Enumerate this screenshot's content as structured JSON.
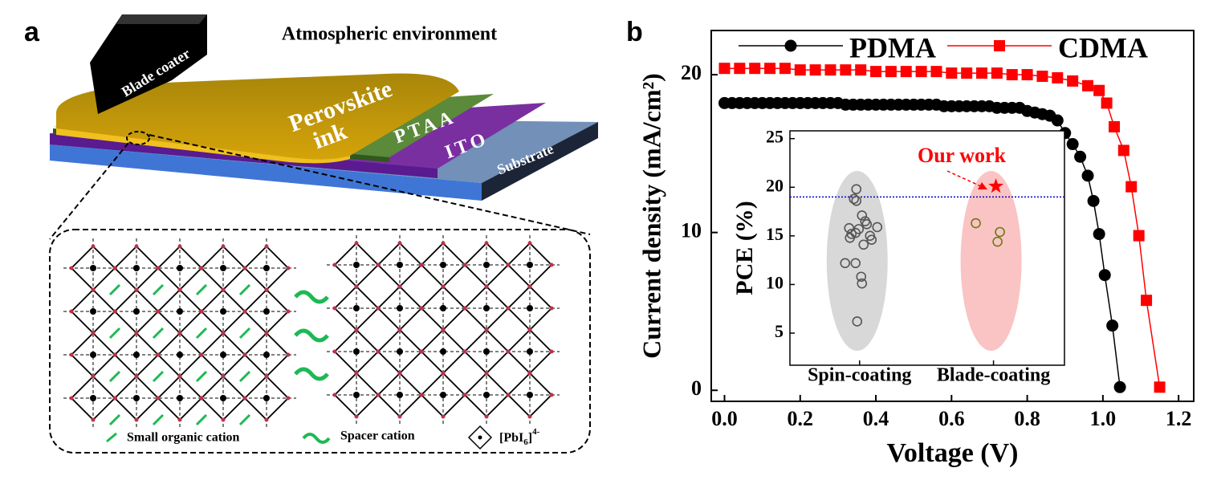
{
  "panel_a": {
    "label": "a",
    "title": "Atmospheric environment",
    "blade": "Blade coater",
    "ink": [
      "Perovskite",
      "ink"
    ],
    "layers": [
      "PTAA",
      "ITO",
      "Substrate"
    ],
    "legend": {
      "small": "Small organic cation",
      "spacer": "Spacer cation",
      "octa": {
        "open": "[PbI",
        "sub": "6",
        "close": "]",
        "sup": "4-"
      }
    }
  },
  "panel_b_label": "b",
  "chart_data": [
    {
      "type": "line",
      "xlabel": "Voltage (V)",
      "ylabel": "Current density (mA/cm²)",
      "xlim": [
        -0.035,
        1.24
      ],
      "ylim": [
        -0.7,
        22.8
      ],
      "xticks": [
        {
          "value": 0,
          "label": "0.0"
        },
        0.2,
        0.4,
        0.6,
        0.8,
        {
          "value": 1,
          "label": "1.0"
        },
        1.2
      ],
      "yticks": [
        0,
        10,
        20
      ],
      "series": [
        {
          "name": "PDMA",
          "color": "#000000",
          "marker": "circle",
          "x": [
            0,
            0.02,
            0.04,
            0.06,
            0.08,
            0.1,
            0.12,
            0.14,
            0.16,
            0.18,
            0.2,
            0.22,
            0.24,
            0.26,
            0.28,
            0.3,
            0.32,
            0.34,
            0.36,
            0.38,
            0.4,
            0.42,
            0.44,
            0.46,
            0.48,
            0.5,
            0.52,
            0.54,
            0.56,
            0.58,
            0.6,
            0.62,
            0.64,
            0.66,
            0.68,
            0.7,
            0.72,
            0.74,
            0.76,
            0.78,
            0.8,
            0.82,
            0.84,
            0.86,
            0.88,
            0.9,
            0.92,
            0.94,
            0.96,
            0.975,
            0.99,
            1.005,
            1.025,
            1.045
          ],
          "values": [
            18.2,
            18.2,
            18.2,
            18.2,
            18.2,
            18.2,
            18.2,
            18.2,
            18.2,
            18.2,
            18.2,
            18.2,
            18.2,
            18.2,
            18.2,
            18.2,
            18.1,
            18.1,
            18.1,
            18.1,
            18.1,
            18.1,
            18.1,
            18.1,
            18.1,
            18.1,
            18.1,
            18.1,
            18.1,
            18,
            18,
            18,
            18,
            18,
            18,
            18,
            17.9,
            17.9,
            17.9,
            17.9,
            17.7,
            17.6,
            17.5,
            17.4,
            17.1,
            16.3,
            15.6,
            14.8,
            13.6,
            12,
            9.9,
            7.3,
            4.1,
            0.2
          ]
        },
        {
          "name": "CDMA",
          "color": "#ff0000",
          "marker": "square",
          "x": [
            0,
            0.04,
            0.08,
            0.12,
            0.16,
            0.2,
            0.24,
            0.28,
            0.32,
            0.36,
            0.4,
            0.44,
            0.48,
            0.52,
            0.56,
            0.6,
            0.64,
            0.68,
            0.72,
            0.76,
            0.8,
            0.84,
            0.88,
            0.92,
            0.96,
            0.99,
            1.01,
            1.03,
            1.055,
            1.075,
            1.095,
            1.115,
            1.15
          ],
          "values": [
            20.4,
            20.4,
            20.4,
            20.4,
            20.4,
            20.3,
            20.3,
            20.3,
            20.3,
            20.3,
            20.2,
            20.2,
            20.2,
            20.2,
            20.2,
            20.1,
            20.1,
            20.1,
            20.1,
            20,
            20,
            19.9,
            19.8,
            19.6,
            19.3,
            19,
            18.2,
            16.7,
            15.2,
            12.9,
            9.8,
            5.7,
            0.2
          ]
        }
      ]
    },
    {
      "type": "scatter",
      "ylabel": "PCE (%)",
      "xlim": [
        0.48,
        2.53
      ],
      "ylim": [
        1.7,
        25.8
      ],
      "xticks": [
        {
          "value": 1,
          "label": "Spin-coating"
        },
        {
          "value": 2,
          "label": "Blade-coating"
        }
      ],
      "yticks": [
        5,
        10,
        15,
        20,
        25
      ],
      "hline": 19,
      "hline_color": "#0000cc",
      "annotation": "Our work",
      "annotation_color": "#ff0000",
      "series": [
        {
          "color": "#555555",
          "marker": "circle",
          "x": [
            0.976,
            0.958,
            0.976,
            1.018,
            1.042,
            1.132,
            0.922,
            0.994,
            1.078,
            0.928,
            0.97,
            1.09,
            1.03,
            0.94,
            0.892,
            0.97,
            1.012,
            1.018,
            0.982,
            1.054
          ],
          "values": [
            19.8,
            18.8,
            18.6,
            17.1,
            16.5,
            15.9,
            15.8,
            15.7,
            15,
            14.8,
            15.3,
            14.6,
            14.1,
            15.2,
            12.2,
            12.2,
            10.8,
            10.1,
            6.2,
            16.2
          ]
        },
        {
          "color": "#6b7a1a",
          "marker": "circle",
          "x": [
            1.868,
            2.048,
            2.03
          ],
          "values": [
            16.3,
            15.4,
            14.4
          ]
        },
        {
          "color": "#ff0000",
          "marker": "star",
          "x": [
            2.018
          ],
          "values": [
            20.1
          ]
        }
      ]
    }
  ]
}
